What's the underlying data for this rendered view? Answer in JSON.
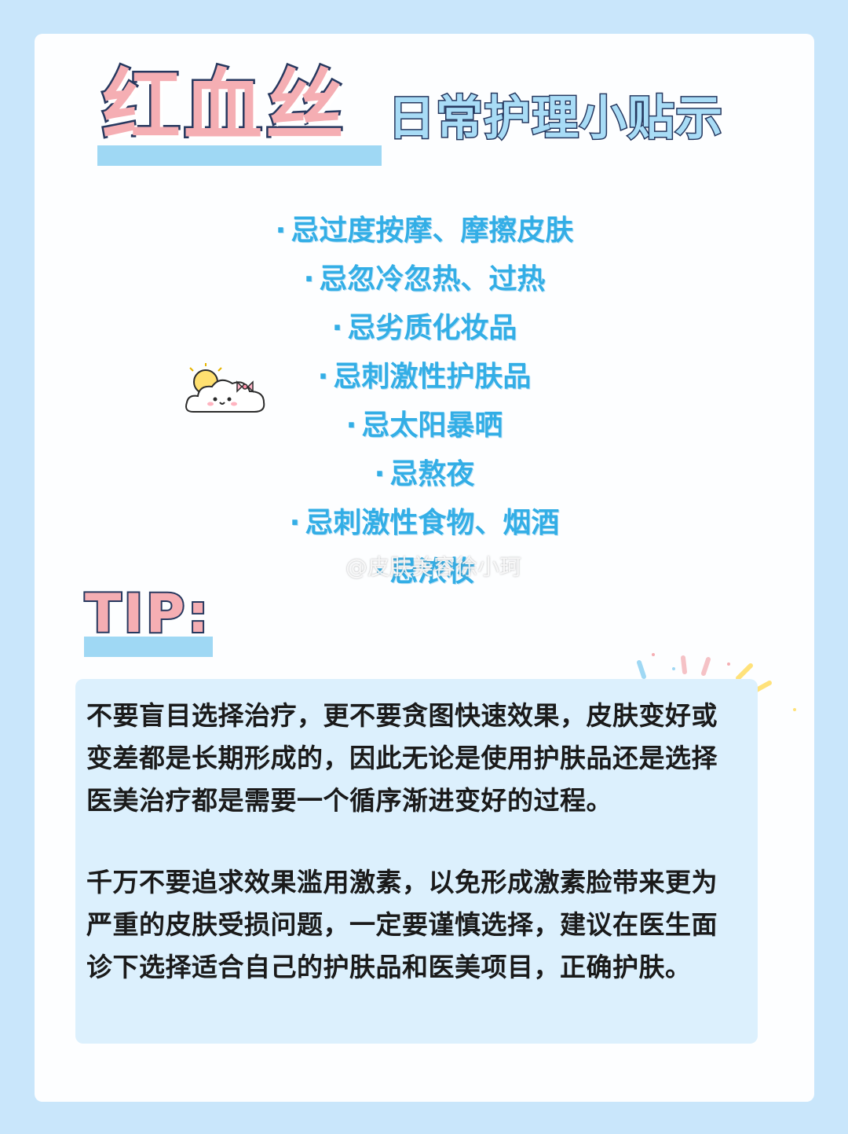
{
  "title": {
    "main": "红血丝",
    "sub": "日常护理小贴示"
  },
  "tips": {
    "bullet": "·",
    "items": [
      "忌过度按摩、摩擦皮肤",
      "忌忽冷忽热、过热",
      "忌劣质化妆品",
      "忌刺激性护肤品",
      "忌太阳暴晒",
      "忌熬夜",
      "忌刺激性食物、烟酒",
      "忌浓妆"
    ]
  },
  "watermark": "@皮肤美容徐小珂",
  "tip_label": "TIP:",
  "note": {
    "paragraph1": "不要盲目选择治疗，更不要贪图快速效果，皮肤变好或变差都是长期形成的，因此无论是使用护肤品还是选择医美治疗都是需要一个循序渐进变好的过程。",
    "paragraph2": "千万不要追求效果滥用激素，以免形成激素脸带来更为严重的皮肤受损问题，一定要谨慎选择，建议在医生面诊下选择适合自己的护肤品和医美项目，正确护肤。"
  },
  "colors": {
    "page_bg": "#c9e6fb",
    "card_bg": "#fdfeff",
    "title_pink": "#f5aeb3",
    "title_blue": "#a8dcf6",
    "outline": "#26385f",
    "tip_text": "#33aee6",
    "note_bg": "#dcf0fd"
  },
  "icons": [
    "cloud-sun-bow-sticker",
    "confetti-decoration"
  ]
}
